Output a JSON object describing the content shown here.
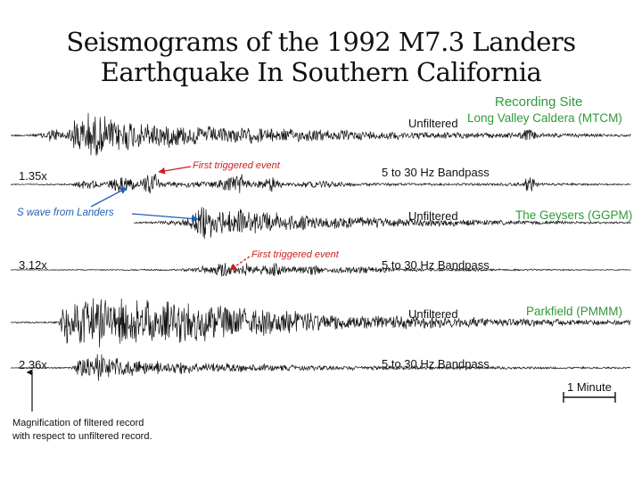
{
  "title": {
    "line1": "Seismograms of the 1992 M7.3 Landers",
    "line2": "Earthquake In Southern California"
  },
  "recording_site_header": "Recording Site",
  "sites": [
    {
      "name": "Long Valley Caldera (MTCM)"
    },
    {
      "name": "The Geysers (GGPM)"
    },
    {
      "name": "Parkfield (PMMM)"
    }
  ],
  "traces": [
    {
      "filter": "Unfiltered",
      "magnification": ""
    },
    {
      "filter": "5 to 30 Hz Bandpass",
      "magnification": "1.35x"
    },
    {
      "filter": "Unfiltered",
      "magnification": ""
    },
    {
      "filter": "5 to 30 Hz Bandpass",
      "magnification": "3.12x"
    },
    {
      "filter": "Unfiltered",
      "magnification": ""
    },
    {
      "filter": "5 to 30 Hz Bandpass",
      "magnification": "2.36x"
    }
  ],
  "annotations": {
    "first_triggered_1": "First triggered event",
    "first_triggered_2": "First triggered event",
    "s_wave": "S wave from Landers"
  },
  "scale_bar_label": "1 Minute",
  "magnification_note": {
    "line1": "Magnification of filtered record",
    "line2": "with respect to unfiltered record."
  },
  "colors": {
    "site_label": "#2e9a3a",
    "triggered_annotation": "#cc1f1f",
    "s_wave_annotation": "#1f5fb5",
    "trace": "#111111"
  }
}
